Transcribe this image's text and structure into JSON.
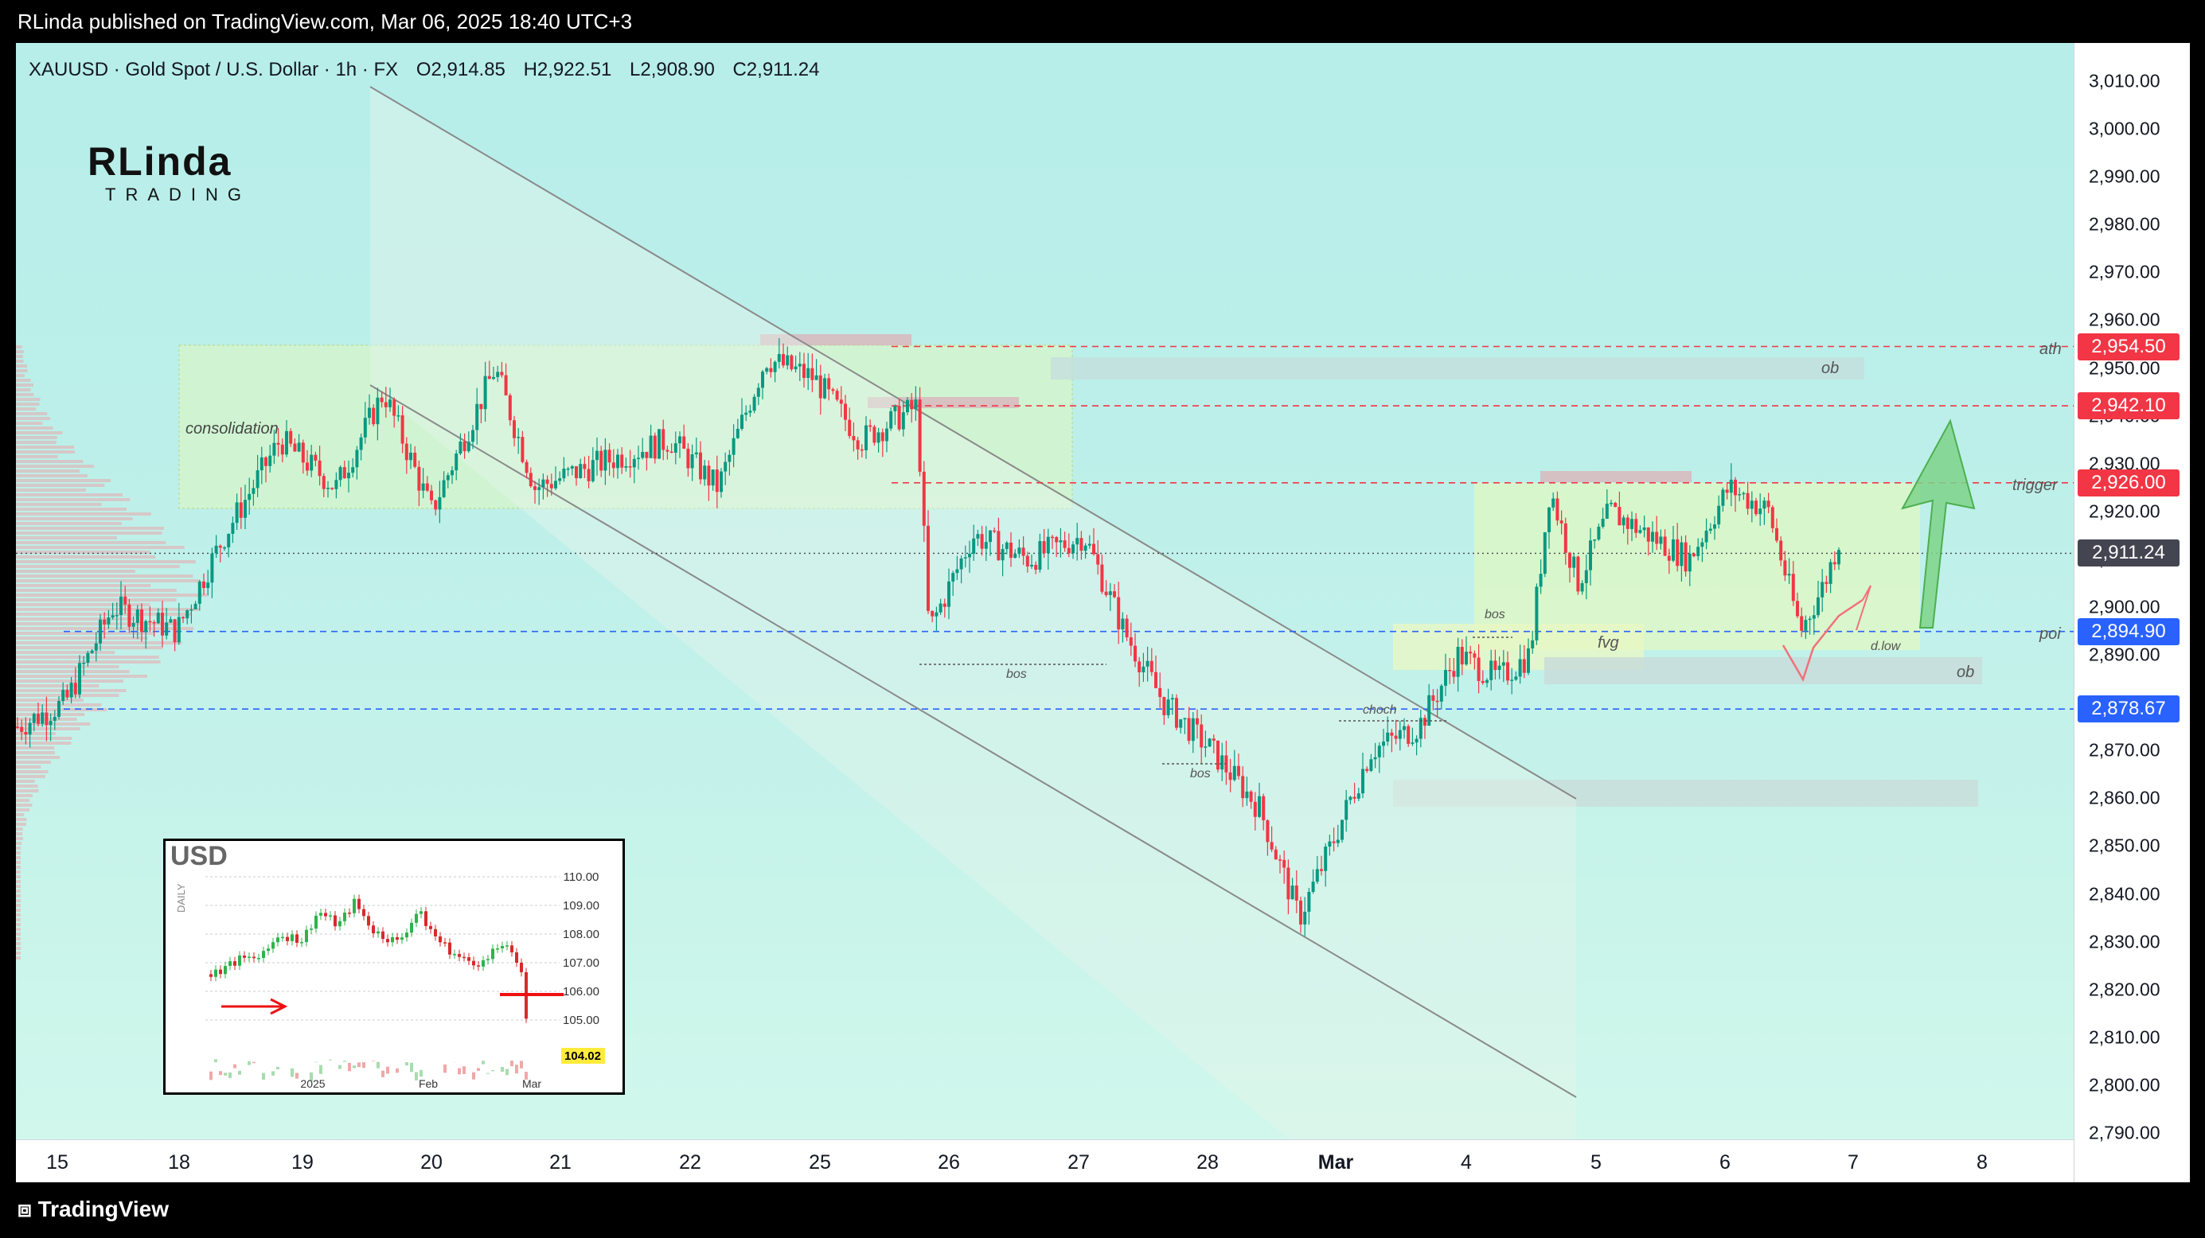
{
  "header": {
    "published": "RLinda published on TradingView.com, Mar 06, 2025 18:40 UTC+3"
  },
  "legend": {
    "symbol": "XAUUSD · Gold Spot / U.S. Dollar · 1h · FX",
    "open": "O2,914.85",
    "high": "H2,922.51",
    "low": "L2,908.90",
    "close": "C2,911.24"
  },
  "logo": {
    "line1": "RLinda",
    "line2": "TRADING"
  },
  "footer": {
    "brand": "TradingView"
  },
  "colors": {
    "up": "#089981",
    "down": "#f23645",
    "accent_red": "#f23645",
    "accent_blue": "#2962ff",
    "last_price": "#434651"
  },
  "price_axis": {
    "ticks": [
      "3,010.00",
      "3,000.00",
      "2,990.00",
      "2,980.00",
      "2,970.00",
      "2,960.00",
      "2,950.00",
      "2,940.00",
      "2,930.00",
      "2,920.00",
      "2,910.00",
      "2,900.00",
      "2,890.00",
      "2,880.00",
      "2,870.00",
      "2,860.00",
      "2,850.00",
      "2,840.00",
      "2,830.00",
      "2,820.00",
      "2,810.00",
      "2,800.00",
      "2,790.00"
    ],
    "labels": [
      {
        "text": "2,954.50",
        "kind": "red"
      },
      {
        "text": "2,942.10",
        "kind": "red"
      },
      {
        "text": "2,926.00",
        "kind": "red"
      },
      {
        "text": "2,911.24",
        "kind": "last"
      },
      {
        "text": "2,894.90",
        "kind": "blue"
      },
      {
        "text": "2,878.67",
        "kind": "blue"
      }
    ]
  },
  "time_axis": {
    "labels": [
      "15",
      "18",
      "19",
      "20",
      "21",
      "22",
      "25",
      "26",
      "27",
      "28",
      "Mar",
      "4",
      "5",
      "6",
      "7",
      "8"
    ]
  },
  "annotations": {
    "consolidation": "consolidation",
    "ath": "ath",
    "ob1": "ob",
    "ob2": "ob",
    "trigger": "trigger",
    "poi": "poi",
    "fvg": "fvg",
    "dlow": "d.low",
    "bos1": "bos",
    "bos2": "bos",
    "bos3": "bos",
    "choch": "choch"
  },
  "inset": {
    "title": "USD",
    "period": "DAILY",
    "ticks": [
      "110.00",
      "109.00",
      "108.00",
      "107.00",
      "106.00",
      "105.00"
    ],
    "last": "104.02",
    "x_labels": [
      "2025",
      "Feb",
      "Mar"
    ]
  },
  "chart_data": {
    "type": "candlestick",
    "symbol": "XAUUSD",
    "timeframe": "1h",
    "ylim": [
      2790,
      3015
    ],
    "x": [
      "15",
      "18",
      "19",
      "20",
      "21",
      "22",
      "25",
      "26",
      "27",
      "28",
      "Mar",
      "4",
      "5",
      "6"
    ],
    "close": [
      2899,
      2912,
      2925,
      2940,
      2936,
      2932,
      2942,
      2913,
      2911,
      2875,
      2870,
      2890,
      2915,
      2911.24
    ],
    "levels": [
      {
        "name": "ath",
        "value": 2954.5
      },
      {
        "name": "",
        "value": 2942.1
      },
      {
        "name": "trigger",
        "value": 2926.0
      },
      {
        "name": "poi",
        "value": 2894.9
      },
      {
        "name": "",
        "value": 2878.67
      }
    ]
  }
}
